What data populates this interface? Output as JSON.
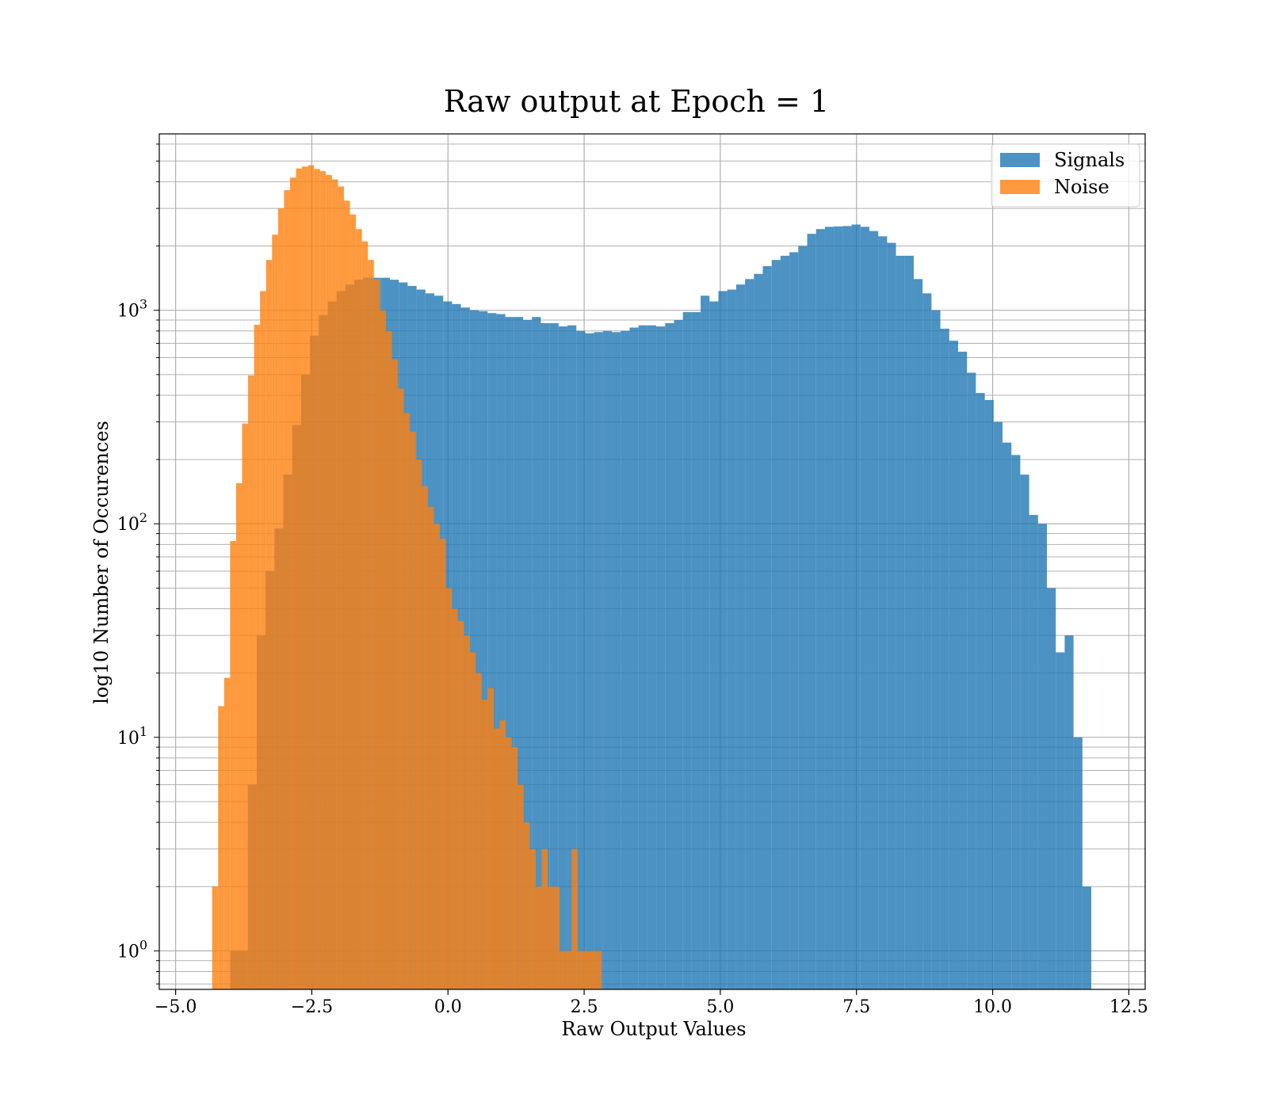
{
  "chart_data": {
    "type": "bar",
    "title": "Raw output at Epoch = 1",
    "xlabel": "Raw Output Values",
    "ylabel": "log10 Number of Occurences",
    "xlim": [
      -5.3,
      12.8
    ],
    "ylim": [
      0.66,
      6700
    ],
    "y_scale": "log",
    "grid": true,
    "grid_minor": true,
    "legend_position": "top-right",
    "x_ticks": [
      {
        "value": -5.0,
        "label": "−5.0"
      },
      {
        "value": -2.5,
        "label": "−2.5"
      },
      {
        "value": 0.0,
        "label": "0.0"
      },
      {
        "value": 2.5,
        "label": "2.5"
      },
      {
        "value": 5.0,
        "label": "5.0"
      },
      {
        "value": 7.5,
        "label": "7.5"
      },
      {
        "value": 10.0,
        "label": "10.0"
      },
      {
        "value": 12.5,
        "label": "12.5"
      }
    ],
    "y_ticks": [
      {
        "value": 1,
        "base": "10",
        "exp": "0"
      },
      {
        "value": 10,
        "base": "10",
        "exp": "1"
      },
      {
        "value": 100,
        "base": "10",
        "exp": "2"
      },
      {
        "value": 1000,
        "base": "10",
        "exp": "3"
      }
    ],
    "series": [
      {
        "name": "Signals",
        "color": "#1f77b4",
        "opacity": 0.8,
        "bin_start": -4.0,
        "bin_width": 0.163,
        "counts": [
          1,
          1,
          6,
          30,
          60,
          95,
          170,
          290,
          500,
          760,
          950,
          1100,
          1230,
          1320,
          1390,
          1420,
          1420,
          1420,
          1390,
          1350,
          1300,
          1250,
          1200,
          1170,
          1100,
          1070,
          1030,
          1000,
          990,
          970,
          960,
          930,
          930,
          900,
          930,
          870,
          870,
          840,
          850,
          800,
          780,
          790,
          800,
          790,
          800,
          830,
          850,
          850,
          840,
          870,
          900,
          980,
          980,
          1170,
          1100,
          1230,
          1250,
          1320,
          1400,
          1480,
          1610,
          1720,
          1800,
          1870,
          2000,
          2280,
          2400,
          2460,
          2470,
          2480,
          2520,
          2460,
          2350,
          2220,
          2070,
          1800,
          1800,
          1400,
          1200,
          1000,
          820,
          720,
          640,
          510,
          410,
          380,
          300,
          240,
          210,
          170,
          110,
          100,
          50,
          25,
          30,
          10,
          2
        ],
        "bin_widths_note": ""
      },
      {
        "name": "Noise",
        "color": "#ff7f0e",
        "opacity": 0.8,
        "bin_start": -4.33,
        "bin_width": 0.11,
        "counts": [
          2,
          14,
          19,
          83,
          155,
          295,
          495,
          855,
          1230,
          1720,
          2260,
          3000,
          3650,
          4180,
          4610,
          4710,
          4780,
          4590,
          4480,
          4300,
          4100,
          3800,
          3260,
          2810,
          2400,
          2100,
          1720,
          1400,
          1000,
          800,
          590,
          430,
          330,
          270,
          200,
          150,
          120,
          100,
          85,
          50,
          40,
          35,
          30,
          25,
          20,
          15,
          17,
          11,
          12,
          10,
          9,
          6,
          4,
          3,
          2,
          3,
          2,
          2,
          1,
          1,
          3,
          1,
          1,
          1,
          1
        ],
        "extra_note": ""
      }
    ]
  }
}
